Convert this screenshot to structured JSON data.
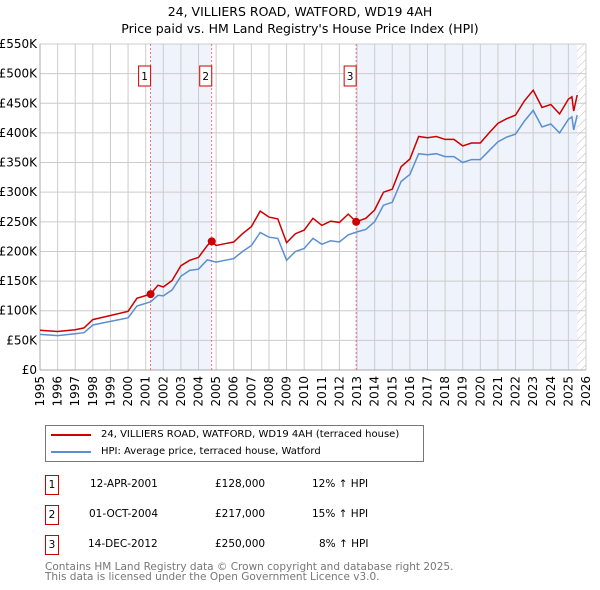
{
  "title": "24, VILLIERS ROAD, WATFORD, WD19 4AH",
  "subtitle": "Price paid vs. HM Land Registry's House Price Index (HPI)",
  "colors": {
    "property": "#cc0000",
    "hpi": "#5b8fd0",
    "shade": "#eef3fc"
  },
  "chart_data": {
    "type": "line",
    "title": "24, VILLIERS ROAD, WATFORD, WD19 4AH",
    "xlim": [
      1995,
      2026
    ],
    "ylim": [
      0,
      550000
    ],
    "yticks": [
      0,
      50000,
      100000,
      150000,
      200000,
      250000,
      300000,
      350000,
      400000,
      450000,
      500000,
      550000
    ],
    "ytick_labels": [
      "£0",
      "£50K",
      "£100K",
      "£150K",
      "£200K",
      "£250K",
      "£300K",
      "£350K",
      "£400K",
      "£450K",
      "£500K",
      "£550K"
    ],
    "xticks": [
      "1995",
      "1996",
      "1997",
      "1998",
      "1999",
      "2000",
      "2001",
      "2002",
      "2003",
      "2004",
      "2005",
      "2006",
      "2007",
      "2008",
      "2009",
      "2010",
      "2011",
      "2012",
      "2013",
      "2014",
      "2015",
      "2016",
      "2017",
      "2018",
      "2019",
      "2020",
      "2021",
      "2022",
      "2023",
      "2024",
      "2025",
      "2026"
    ],
    "grid": true,
    "shaded_ranges": [
      [
        2001.28,
        2004.75
      ],
      [
        2012.95,
        2025.5
      ]
    ],
    "hatched_from": 2025.5,
    "series": [
      {
        "name": "24, VILLIERS ROAD, WATFORD, WD19 4AH (terraced house)",
        "color": "#cc0000",
        "points": [
          [
            1995,
            67
          ],
          [
            1996,
            65
          ],
          [
            1997,
            68
          ],
          [
            1997.5,
            71
          ],
          [
            1998,
            85
          ],
          [
            1999,
            92
          ],
          [
            2000,
            99
          ],
          [
            2000.5,
            121
          ],
          [
            2001.28,
            128
          ],
          [
            2001.7,
            143
          ],
          [
            2002,
            140
          ],
          [
            2002.5,
            151
          ],
          [
            2003,
            176
          ],
          [
            2003.5,
            185
          ],
          [
            2004,
            190
          ],
          [
            2004.5,
            210
          ],
          [
            2004.75,
            217
          ],
          [
            2005,
            210
          ],
          [
            2005.5,
            213
          ],
          [
            2006,
            216
          ],
          [
            2006.5,
            230
          ],
          [
            2007,
            242
          ],
          [
            2007.5,
            268
          ],
          [
            2008,
            258
          ],
          [
            2008.5,
            255
          ],
          [
            2009,
            215
          ],
          [
            2009.5,
            230
          ],
          [
            2010,
            236
          ],
          [
            2010.5,
            256
          ],
          [
            2011,
            244
          ],
          [
            2011.5,
            251
          ],
          [
            2012,
            249
          ],
          [
            2012.5,
            263
          ],
          [
            2012.95,
            250
          ],
          [
            2013.5,
            256
          ],
          [
            2014,
            270
          ],
          [
            2014.5,
            300
          ],
          [
            2015,
            305
          ],
          [
            2015.5,
            343
          ],
          [
            2016,
            356
          ],
          [
            2016.5,
            394
          ],
          [
            2017,
            392
          ],
          [
            2017.5,
            394
          ],
          [
            2018,
            389
          ],
          [
            2018.5,
            389
          ],
          [
            2019,
            378
          ],
          [
            2019.5,
            383
          ],
          [
            2020,
            383
          ],
          [
            2020.5,
            400
          ],
          [
            2021,
            416
          ],
          [
            2021.5,
            424
          ],
          [
            2022,
            430
          ],
          [
            2022.5,
            454
          ],
          [
            2023,
            472
          ],
          [
            2023.5,
            443
          ],
          [
            2024,
            448
          ],
          [
            2024.5,
            432
          ],
          [
            2025,
            457
          ],
          [
            2025.2,
            461
          ],
          [
            2025.3,
            437
          ],
          [
            2025.5,
            464
          ]
        ]
      },
      {
        "name": "HPI: Average price, terraced house, Watford",
        "color": "#5b8fd0",
        "points": [
          [
            1995,
            60
          ],
          [
            1996,
            58
          ],
          [
            1997,
            61
          ],
          [
            1997.5,
            63
          ],
          [
            1998,
            76
          ],
          [
            1999,
            82
          ],
          [
            2000,
            88
          ],
          [
            2000.5,
            108
          ],
          [
            2001.28,
            115
          ],
          [
            2001.7,
            126
          ],
          [
            2002,
            125
          ],
          [
            2002.5,
            135
          ],
          [
            2003,
            158
          ],
          [
            2003.5,
            168
          ],
          [
            2004,
            170
          ],
          [
            2004.5,
            186
          ],
          [
            2005,
            182
          ],
          [
            2005.5,
            185
          ],
          [
            2006,
            188
          ],
          [
            2006.5,
            200
          ],
          [
            2007,
            210
          ],
          [
            2007.5,
            232
          ],
          [
            2008,
            224
          ],
          [
            2008.5,
            222
          ],
          [
            2009,
            185
          ],
          [
            2009.5,
            200
          ],
          [
            2010,
            205
          ],
          [
            2010.5,
            222
          ],
          [
            2011,
            212
          ],
          [
            2011.5,
            218
          ],
          [
            2012,
            216
          ],
          [
            2012.5,
            228
          ],
          [
            2013,
            233
          ],
          [
            2013.5,
            237
          ],
          [
            2014,
            250
          ],
          [
            2014.5,
            278
          ],
          [
            2015,
            283
          ],
          [
            2015.5,
            318
          ],
          [
            2016,
            330
          ],
          [
            2016.5,
            365
          ],
          [
            2017,
            363
          ],
          [
            2017.5,
            365
          ],
          [
            2018,
            360
          ],
          [
            2018.5,
            360
          ],
          [
            2019,
            350
          ],
          [
            2019.5,
            355
          ],
          [
            2020,
            355
          ],
          [
            2020.5,
            370
          ],
          [
            2021,
            385
          ],
          [
            2021.5,
            393
          ],
          [
            2022,
            398
          ],
          [
            2022.5,
            420
          ],
          [
            2023,
            438
          ],
          [
            2023.5,
            410
          ],
          [
            2024,
            415
          ],
          [
            2024.5,
            400
          ],
          [
            2025,
            423
          ],
          [
            2025.2,
            427
          ],
          [
            2025.3,
            405
          ],
          [
            2025.5,
            430
          ]
        ]
      }
    ],
    "value_units": "thousands GBP",
    "sales": [
      {
        "label": "1",
        "x": 2001.28,
        "y": 128
      },
      {
        "label": "2",
        "x": 2004.75,
        "y": 217
      },
      {
        "label": "3",
        "x": 2012.95,
        "y": 250
      }
    ]
  },
  "legend": {
    "property": "24, VILLIERS ROAD, WATFORD, WD19 4AH (terraced house)",
    "hpi": "HPI: Average price, terraced house, Watford"
  },
  "transactions": [
    {
      "num": "1",
      "date": "12-APR-2001",
      "price": "£128,000",
      "delta": "12% ↑ HPI"
    },
    {
      "num": "2",
      "date": "01-OCT-2004",
      "price": "£217,000",
      "delta": "15% ↑ HPI"
    },
    {
      "num": "3",
      "date": "14-DEC-2012",
      "price": "£250,000",
      "delta": "8% ↑ HPI"
    }
  ],
  "footer": {
    "line1": "Contains HM Land Registry data © Crown copyright and database right 2025.",
    "line2": "This data is licensed under the Open Government Licence v3.0."
  }
}
